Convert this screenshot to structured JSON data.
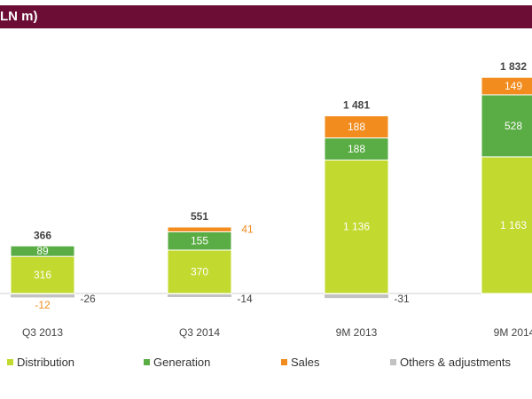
{
  "header": {
    "title": "LN m)",
    "bg_color": "#6b0d35"
  },
  "chart_data": {
    "type": "bar",
    "stacked": true,
    "title": "",
    "xlabel": "",
    "ylabel": "",
    "categories": [
      "Q3 2013",
      "Q3 2014",
      "9M 2013",
      "9M 2014"
    ],
    "series": [
      {
        "name": "Distribution",
        "color": "#c2d92f",
        "values": [
          316,
          370,
          1136,
          1163
        ],
        "labels": [
          "316",
          "370",
          "1 136",
          "1 163"
        ]
      },
      {
        "name": "Generation",
        "color": "#5aac44",
        "values": [
          89,
          155,
          188,
          528
        ],
        "labels": [
          "89",
          "155",
          "188",
          "528"
        ]
      },
      {
        "name": "Sales",
        "color": "#f28c1e",
        "values": [
          -12,
          41,
          188,
          149
        ],
        "labels": [
          "-12",
          "41",
          "188",
          "149"
        ]
      },
      {
        "name": "Others &  adjustments",
        "color": "#c2c2c2",
        "values": [
          -26,
          -14,
          -31,
          null
        ],
        "labels": [
          "-26",
          "-14",
          "-31",
          ""
        ]
      }
    ],
    "totals": [
      "366",
      "551",
      "1 481",
      "1 832"
    ],
    "grid": false,
    "legend_position": "bottom"
  }
}
